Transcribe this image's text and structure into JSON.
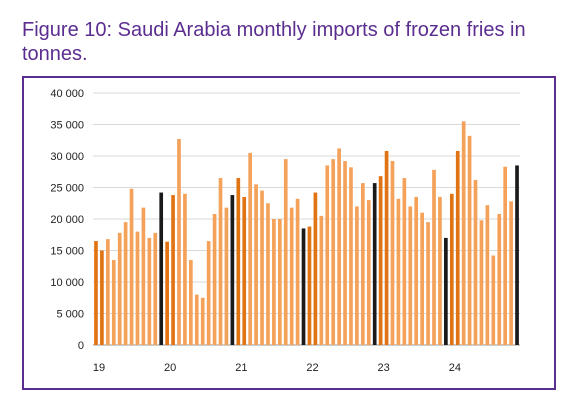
{
  "figure": {
    "title": "Figure 10: Saudi Arabia monthly imports of frozen fries in tonnes."
  },
  "colors": {
    "light_bar": "#f4a15a",
    "dark_bar": "#e07414",
    "december_bar": "#1a1a1a",
    "frame": "#5b2d90",
    "grid": "#d9d9d9"
  },
  "chart_data": {
    "type": "bar",
    "title": "Figure 10: Saudi Arabia monthly imports of frozen fries in tonnes.",
    "xlabel": "",
    "ylabel": "",
    "ylim": [
      0,
      40000
    ],
    "yticks": [
      0,
      5000,
      10000,
      15000,
      20000,
      25000,
      30000,
      35000,
      40000
    ],
    "ytick_labels": [
      "0",
      "5 000",
      "10 000",
      "15 000",
      "20 000",
      "25 000",
      "30 000",
      "35 000",
      "40 000"
    ],
    "xtick_labels": [
      "19",
      "20",
      "21",
      "22",
      "23",
      "24"
    ],
    "grid": true,
    "legend": "none",
    "bar_shading": "darker orange for the first months of each year, black for December",
    "years": [
      {
        "year": "19",
        "values": [
          16500,
          15000,
          16800,
          13500,
          17800,
          19500,
          24800,
          18000,
          21800,
          17000,
          17800,
          24200
        ]
      },
      {
        "year": "20",
        "values": [
          16400,
          23800,
          32700,
          24000,
          13500,
          8000,
          7500,
          16500,
          20800,
          26500,
          21800,
          23800
        ]
      },
      {
        "year": "21",
        "values": [
          26500,
          23500,
          30500,
          25500,
          24500,
          22500,
          20000,
          20000,
          29500,
          21800,
          23200,
          18500
        ]
      },
      {
        "year": "22",
        "values": [
          18800,
          24200,
          20500,
          28500,
          29500,
          31200,
          29200,
          28200,
          22000,
          25700,
          23000,
          25700
        ]
      },
      {
        "year": "23",
        "values": [
          26800,
          30800,
          29200,
          23200,
          26500,
          22000,
          23500,
          21000,
          19500,
          27800,
          23500,
          17000
        ]
      },
      {
        "year": "24",
        "values": [
          24000,
          30800,
          35500,
          33200,
          26200,
          19800,
          22200,
          14200,
          20800,
          28300,
          22800,
          28500
        ]
      }
    ]
  }
}
